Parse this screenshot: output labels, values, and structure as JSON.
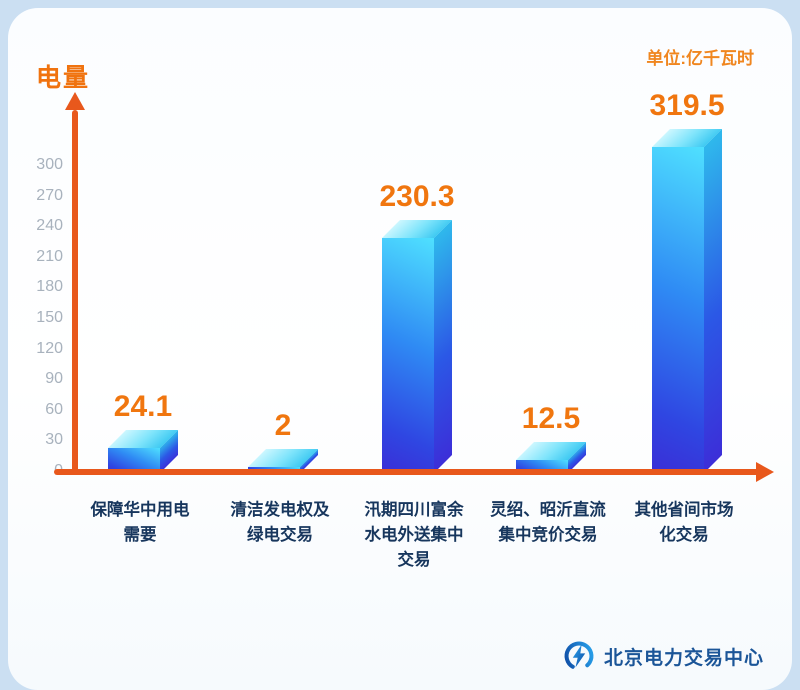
{
  "header": {
    "ylabel": "电量",
    "unit": "单位:亿千瓦时"
  },
  "brand": {
    "name": "北京电力交易中心"
  },
  "colors": {
    "axis": "#e8581c",
    "value_text": "#f0760f",
    "category_text": "#17365d",
    "tick_text": "#a8b2bd",
    "bar_cyan": "#4fe0ff",
    "bar_blue": "#2f46e2",
    "brand_text": "#1b5598"
  },
  "chart_data": {
    "type": "bar",
    "title": "",
    "ylabel": "电量",
    "unit": "单位:亿千瓦时",
    "categories": [
      "保障华中用电\n需要",
      "清洁发电权及\n绿电交易",
      "汛期四川富余\n水电外送集中\n交易",
      "灵绍、昭沂直流\n集中竞价交易",
      "其他省间市场\n化交易"
    ],
    "values": [
      24.1,
      2,
      230.3,
      12.5,
      319.5
    ],
    "value_labels": [
      "24.1",
      "2",
      "230.3",
      "12.5",
      "319.5"
    ],
    "yticks": [
      0,
      30,
      60,
      90,
      120,
      150,
      180,
      210,
      240,
      270,
      300
    ],
    "ylim": [
      0,
      330
    ],
    "grid": false,
    "legend": false,
    "style": "3d-gradient-blue-bars, orange axis with arrowheads"
  }
}
